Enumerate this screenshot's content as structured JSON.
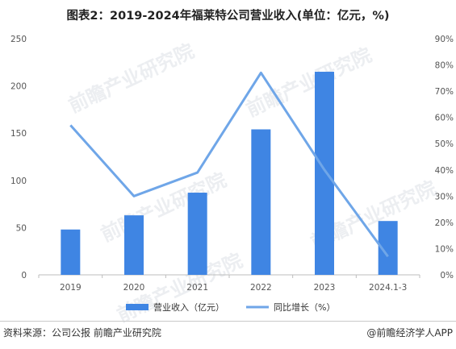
{
  "title": "图表2：2019-2024年福莱特公司营业收入(单位：亿元，%)",
  "source": "资料来源：公司公报 前瞻产业研究院",
  "brand": "@前瞻经济学人APP",
  "watermark": "前瞻产业研究院",
  "colors": {
    "bar": "#3f85e3",
    "line": "#6fa6e8",
    "axis": "#bdbdbd",
    "text": "#555555"
  },
  "chart_data": {
    "type": "bar",
    "categories": [
      "2019",
      "2020",
      "2021",
      "2022",
      "2023",
      "2024.1-3"
    ],
    "series": [
      {
        "name": "营业收入（亿元）",
        "type": "bar",
        "axis": "left",
        "values": [
          48,
          63,
          87,
          154,
          215,
          57
        ]
      },
      {
        "name": "同比增长（%）",
        "type": "line",
        "axis": "right",
        "values": [
          57,
          30,
          39,
          77,
          40,
          7
        ]
      }
    ],
    "ylim_left": [
      0,
      250
    ],
    "yticks_left": [
      "0",
      "50",
      "100",
      "150",
      "200",
      "250"
    ],
    "ylim_right": [
      0,
      90
    ],
    "yticks_right": [
      "0%",
      "10%",
      "20%",
      "30%",
      "40%",
      "50%",
      "60%",
      "70%",
      "80%",
      "90%"
    ],
    "grid": false,
    "legend_position": "bottom"
  }
}
